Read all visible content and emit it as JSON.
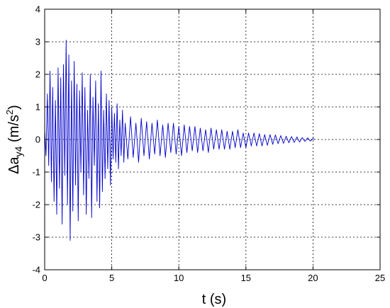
{
  "chart_data": {
    "type": "line",
    "title": "",
    "xlabel": "t (s)",
    "ylabel": {
      "prefix": "Δa",
      "subscript": "y4",
      "unit_open": " (m/s",
      "unit_sup": "2",
      "unit_close": ")"
    },
    "xlim": [
      0,
      25
    ],
    "ylim": [
      -4,
      4
    ],
    "xticks": [
      0,
      5,
      10,
      15,
      20,
      25
    ],
    "yticks": [
      -4,
      -3,
      -2,
      -1,
      0,
      1,
      2,
      3,
      4
    ],
    "xtick_labels": [
      "0",
      "5",
      "10",
      "15",
      "20",
      "25"
    ],
    "ytick_labels": [
      "-4",
      "-3",
      "-2",
      "-1",
      "0",
      "1",
      "2",
      "3",
      "4"
    ],
    "grid": true,
    "series": [
      {
        "color": "#0000cc",
        "x": [
          0.0,
          0.1,
          0.2,
          0.3,
          0.4,
          0.5,
          0.6,
          0.7,
          0.8,
          0.9,
          1.0,
          1.1,
          1.2,
          1.3,
          1.4,
          1.5,
          1.6,
          1.7,
          1.8,
          1.9,
          2.0,
          2.1,
          2.2,
          2.3,
          2.4,
          2.5,
          2.6,
          2.7,
          2.8,
          2.9,
          3.0,
          3.1,
          3.2,
          3.3,
          3.4,
          3.5,
          3.6,
          3.7,
          3.8,
          3.9,
          4.0,
          4.1,
          4.2,
          4.3,
          4.4,
          4.5,
          4.6,
          4.7,
          4.8,
          4.9,
          5.0,
          5.1,
          5.2,
          5.3,
          5.4,
          5.5,
          5.6,
          5.7,
          5.8,
          5.9,
          6.0,
          6.2,
          6.4,
          6.6,
          6.8,
          7.0,
          7.2,
          7.4,
          7.6,
          7.8,
          8.0,
          8.2,
          8.4,
          8.6,
          8.8,
          9.0,
          9.2,
          9.4,
          9.6,
          9.8,
          10.0,
          10.2,
          10.4,
          10.6,
          10.8,
          11.0,
          11.2,
          11.4,
          11.6,
          11.8,
          12.0,
          12.2,
          12.4,
          12.6,
          12.8,
          13.0,
          13.2,
          13.4,
          13.6,
          13.8,
          14.0,
          14.2,
          14.4,
          14.6,
          14.8,
          15.0,
          15.2,
          15.4,
          15.6,
          15.8,
          16.0,
          16.2,
          16.4,
          16.6,
          16.8,
          17.0,
          17.2,
          17.4,
          17.6,
          17.8,
          18.0,
          18.2,
          18.4,
          18.6,
          18.8,
          19.0,
          19.2,
          19.4,
          19.6,
          19.8,
          20.0,
          20.1
        ],
        "y": [
          0.3,
          -0.5,
          1.4,
          -0.8,
          2.1,
          -1.3,
          1.6,
          -1.9,
          1.2,
          -2.3,
          2.2,
          -1.5,
          1.9,
          -2.6,
          2.3,
          -1.1,
          3.05,
          -2.0,
          2.6,
          -3.1,
          1.8,
          -2.2,
          2.4,
          -1.4,
          1.7,
          -2.5,
          1.5,
          -1.0,
          2.05,
          -1.7,
          1.6,
          -2.3,
          0.9,
          -1.2,
          2.0,
          -2.4,
          1.3,
          -0.8,
          1.8,
          -1.9,
          1.1,
          -2.1,
          2.1,
          -1.6,
          0.9,
          -1.2,
          1.4,
          -0.9,
          1.2,
          -1.4,
          1.0,
          -0.6,
          0.8,
          -0.7,
          1.1,
          -0.9,
          0.6,
          -0.5,
          0.9,
          -0.7,
          0.5,
          -0.6,
          0.7,
          -0.55,
          0.5,
          -0.7,
          0.65,
          -0.5,
          0.55,
          -0.6,
          0.5,
          -0.45,
          0.6,
          -0.5,
          0.45,
          -0.55,
          0.5,
          -0.4,
          0.5,
          -0.45,
          0.4,
          -0.5,
          0.45,
          -0.4,
          0.4,
          -0.35,
          0.4,
          -0.4,
          0.35,
          -0.35,
          0.3,
          -0.4,
          0.35,
          -0.3,
          0.3,
          -0.3,
          0.3,
          -0.3,
          0.25,
          -0.3,
          0.25,
          -0.25,
          0.3,
          -0.25,
          0.2,
          -0.25,
          0.2,
          -0.2,
          0.2,
          -0.2,
          0.18,
          -0.2,
          0.15,
          -0.18,
          0.15,
          -0.15,
          0.14,
          -0.13,
          0.12,
          -0.12,
          0.1,
          -0.1,
          0.09,
          -0.09,
          0.08,
          -0.08,
          0.06,
          -0.06,
          0.05,
          -0.05,
          0.03,
          0.0
        ]
      }
    ]
  }
}
